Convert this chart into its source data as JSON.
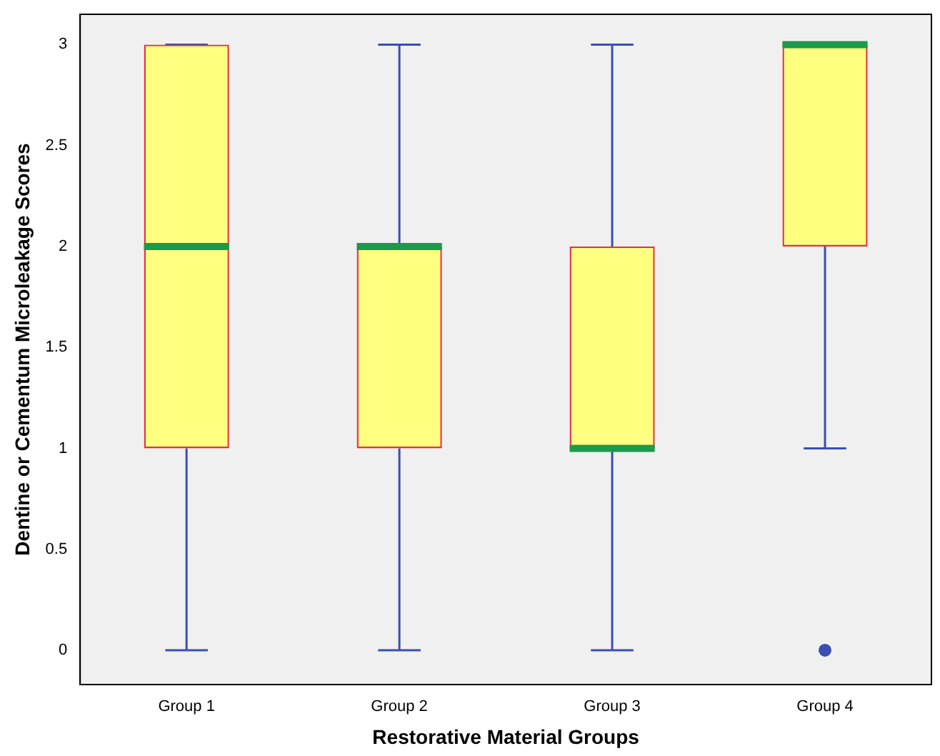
{
  "chart_data": {
    "type": "box",
    "xlabel": "Restorative Material Groups",
    "ylabel": "Dentine or Cementum Microleakage Scores",
    "categories": [
      "Group 1",
      "Group 2",
      "Group 3",
      "Group 4"
    ],
    "boxes": [
      {
        "low": 0,
        "q1": 1,
        "median": 2,
        "q3": 3,
        "high": 3
      },
      {
        "low": 0,
        "q1": 1,
        "median": 2,
        "q3": 2,
        "high": 3
      },
      {
        "low": 0,
        "q1": 1,
        "median": 1,
        "q3": 2,
        "high": 3
      },
      {
        "low": 1,
        "q1": 2,
        "median": 3,
        "q3": 3,
        "high": 3,
        "outliers": [
          0
        ]
      }
    ],
    "ylim": [
      -0.17,
      3.15
    ],
    "yticks": [
      0,
      0.5,
      1,
      1.5,
      2,
      2.5,
      3
    ],
    "grid": false,
    "legend": false
  }
}
